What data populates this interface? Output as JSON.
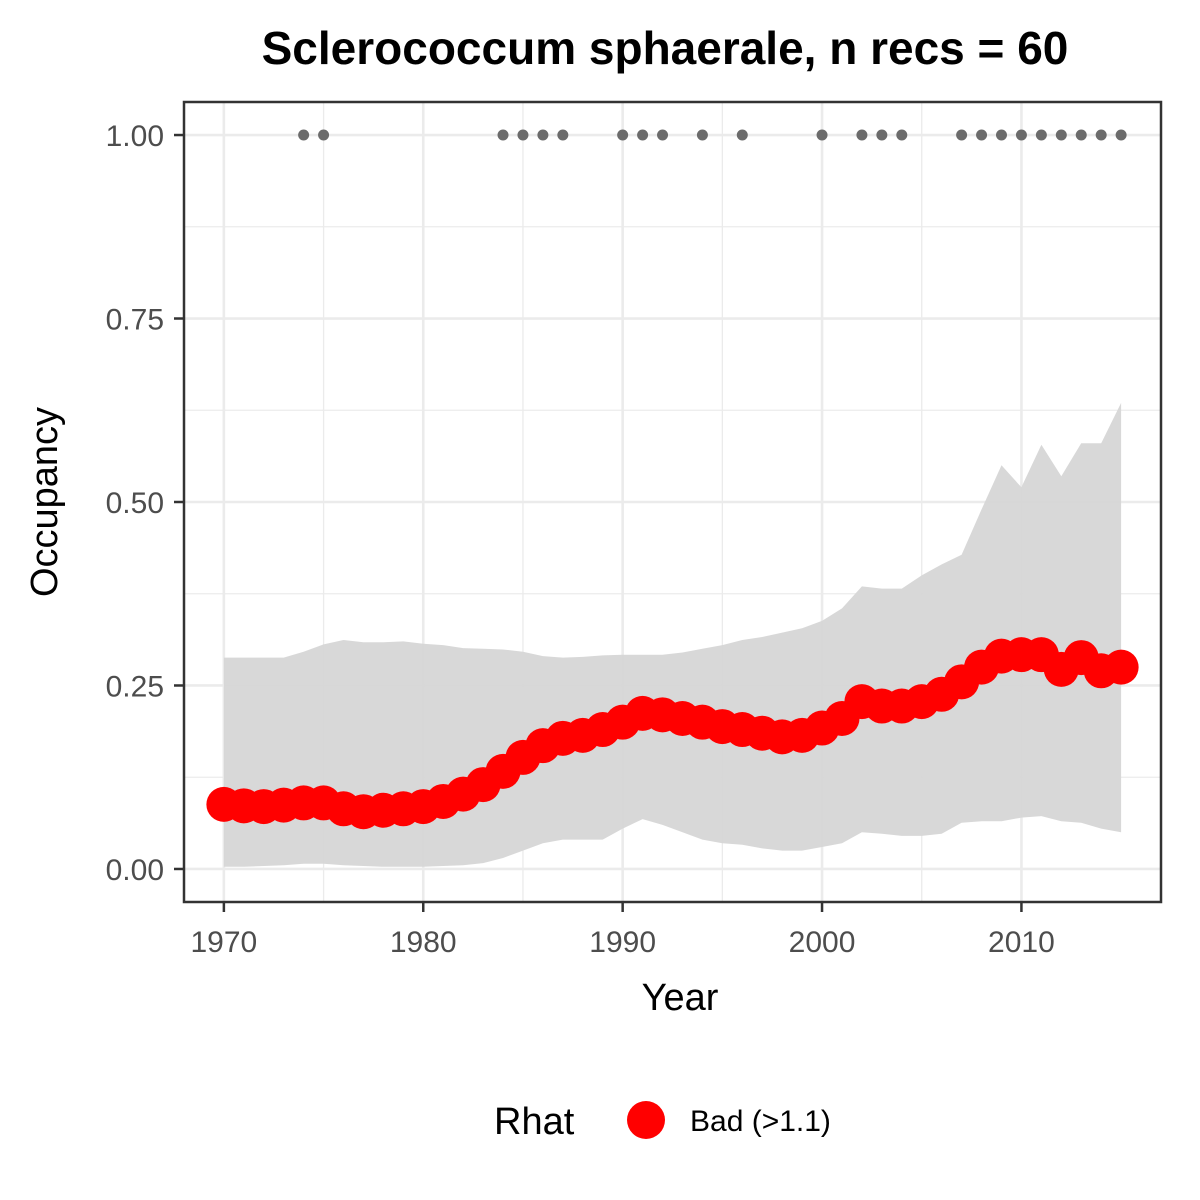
{
  "chart_data": {
    "type": "line",
    "title": "Sclerococcum sphaerale, n recs = 60",
    "xlabel": "Year",
    "ylabel": "Occupancy",
    "xlim": [
      1968,
      2017
    ],
    "ylim": [
      -0.045,
      1.045
    ],
    "x_ticks": [
      "1970",
      "1980",
      "1990",
      "2000",
      "2010"
    ],
    "x_tick_values": [
      1970,
      1980,
      1990,
      2000,
      2010
    ],
    "y_ticks": [
      "0.00",
      "0.25",
      "0.50",
      "0.75",
      "1.00"
    ],
    "y_tick_values": [
      0,
      0.25,
      0.5,
      0.75,
      1.0
    ],
    "grid": true,
    "colors": {
      "points": "#ff0000",
      "ribbon": "#d6d6d6",
      "records": "#6b6b6b",
      "grid": "#ebebeb",
      "border": "#333333"
    },
    "series": [
      {
        "name": "Bad (>1.1)",
        "x": [
          1970,
          1971,
          1972,
          1973,
          1974,
          1975,
          1976,
          1977,
          1978,
          1979,
          1980,
          1981,
          1982,
          1983,
          1984,
          1985,
          1986,
          1987,
          1988,
          1989,
          1990,
          1991,
          1992,
          1993,
          1994,
          1995,
          1996,
          1997,
          1998,
          1999,
          2000,
          2001,
          2002,
          2003,
          2004,
          2005,
          2006,
          2007,
          2008,
          2009,
          2010,
          2011,
          2012,
          2013,
          2014,
          2015
        ],
        "values": [
          0.088,
          0.086,
          0.085,
          0.087,
          0.09,
          0.09,
          0.082,
          0.078,
          0.08,
          0.082,
          0.085,
          0.092,
          0.102,
          0.115,
          0.133,
          0.152,
          0.168,
          0.178,
          0.182,
          0.19,
          0.2,
          0.212,
          0.21,
          0.205,
          0.2,
          0.194,
          0.19,
          0.185,
          0.18,
          0.182,
          0.192,
          0.205,
          0.228,
          0.222,
          0.222,
          0.228,
          0.238,
          0.255,
          0.275,
          0.29,
          0.292,
          0.292,
          0.272,
          0.288,
          0.27,
          0.275
        ]
      }
    ],
    "ribbon": {
      "x": [
        1970,
        1971,
        1972,
        1973,
        1974,
        1975,
        1976,
        1977,
        1978,
        1979,
        1980,
        1981,
        1982,
        1983,
        1984,
        1985,
        1986,
        1987,
        1988,
        1989,
        1990,
        1991,
        1992,
        1993,
        1994,
        1995,
        1996,
        1997,
        1998,
        1999,
        2000,
        2001,
        2002,
        2003,
        2004,
        2005,
        2006,
        2007,
        2008,
        2009,
        2010,
        2011,
        2012,
        2013,
        2014,
        2015
      ],
      "upper": [
        0.288,
        0.288,
        0.288,
        0.288,
        0.296,
        0.306,
        0.312,
        0.309,
        0.309,
        0.31,
        0.307,
        0.305,
        0.301,
        0.3,
        0.299,
        0.296,
        0.29,
        0.288,
        0.289,
        0.291,
        0.292,
        0.292,
        0.292,
        0.295,
        0.3,
        0.305,
        0.312,
        0.316,
        0.322,
        0.328,
        0.338,
        0.355,
        0.385,
        0.382,
        0.382,
        0.4,
        0.415,
        0.428,
        0.49,
        0.55,
        0.52,
        0.578,
        0.535,
        0.58,
        0.58,
        0.635
      ],
      "lower": [
        0.003,
        0.003,
        0.004,
        0.005,
        0.007,
        0.007,
        0.005,
        0.004,
        0.003,
        0.003,
        0.003,
        0.004,
        0.005,
        0.008,
        0.015,
        0.025,
        0.035,
        0.04,
        0.04,
        0.04,
        0.055,
        0.068,
        0.06,
        0.05,
        0.04,
        0.035,
        0.033,
        0.028,
        0.025,
        0.025,
        0.03,
        0.035,
        0.05,
        0.048,
        0.045,
        0.045,
        0.048,
        0.063,
        0.065,
        0.065,
        0.07,
        0.072,
        0.065,
        0.063,
        0.055,
        0.05
      ]
    },
    "records": {
      "y": 1.0,
      "x": [
        1974,
        1975,
        1984,
        1985,
        1986,
        1987,
        1990,
        1991,
        1992,
        1994,
        1996,
        2000,
        2002,
        2003,
        2004,
        2007,
        2008,
        2009,
        2010,
        2011,
        2012,
        2013,
        2014,
        2015
      ]
    },
    "legend": {
      "title": "Rhat",
      "label": "Bad (>1.1)",
      "position": "bottom"
    }
  }
}
